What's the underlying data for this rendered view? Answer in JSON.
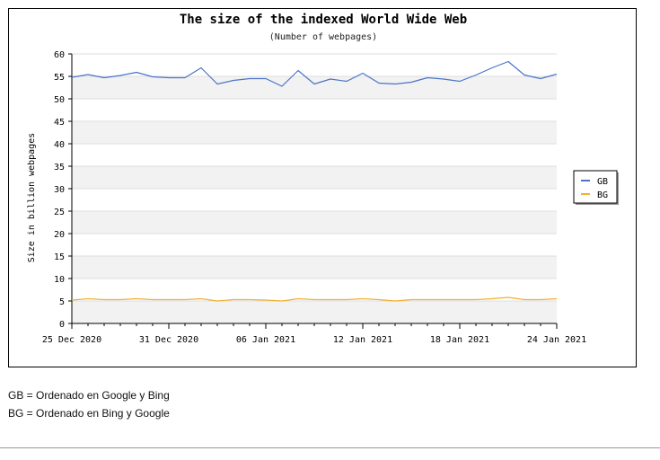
{
  "chart_data": {
    "type": "line",
    "title": "The size of the indexed World Wide Web",
    "subtitle": "(Number of webpages)",
    "xlabel": "",
    "ylabel": "Size in billion webpages",
    "ylim": [
      0,
      60
    ],
    "yticks": [
      0,
      5,
      10,
      15,
      20,
      25,
      30,
      35,
      40,
      45,
      50,
      55,
      60
    ],
    "xlim": [
      "2020-12-25",
      "2021-01-24"
    ],
    "xtick_labels": [
      "25 Dec 2020",
      "31 Dec 2020",
      "06 Jan 2021",
      "12 Jan 2021",
      "18 Jan 2021",
      "24 Jan 2021"
    ],
    "grid": "horizontal alternating bands",
    "legend_position": "right",
    "x": [
      "2020-12-25",
      "2020-12-26",
      "2020-12-27",
      "2020-12-28",
      "2020-12-29",
      "2020-12-30",
      "2020-12-31",
      "2021-01-01",
      "2021-01-02",
      "2021-01-03",
      "2021-01-04",
      "2021-01-05",
      "2021-01-06",
      "2021-01-07",
      "2021-01-08",
      "2021-01-09",
      "2021-01-10",
      "2021-01-11",
      "2021-01-12",
      "2021-01-13",
      "2021-01-14",
      "2021-01-15",
      "2021-01-16",
      "2021-01-17",
      "2021-01-18",
      "2021-01-19",
      "2021-01-20",
      "2021-01-21",
      "2021-01-22",
      "2021-01-23",
      "2021-01-24"
    ],
    "series": [
      {
        "name": "GB",
        "color": "#4a74c9",
        "values": [
          54.8,
          55.4,
          54.7,
          55.2,
          55.9,
          54.9,
          54.7,
          54.7,
          56.9,
          53.3,
          54.1,
          54.5,
          54.5,
          52.8,
          56.3,
          53.3,
          54.4,
          53.9,
          55.7,
          53.5,
          53.3,
          53.7,
          54.7,
          54.4,
          53.9,
          55.3,
          56.9,
          58.3,
          55.3,
          54.5,
          55.5
        ]
      },
      {
        "name": "BG",
        "color": "#f0b030",
        "values": [
          5.2,
          5.5,
          5.3,
          5.3,
          5.5,
          5.3,
          5.3,
          5.3,
          5.5,
          5.0,
          5.3,
          5.3,
          5.2,
          5.0,
          5.5,
          5.3,
          5.3,
          5.3,
          5.5,
          5.3,
          5.0,
          5.3,
          5.3,
          5.3,
          5.3,
          5.3,
          5.5,
          5.8,
          5.3,
          5.3,
          5.5
        ]
      }
    ]
  },
  "notes": {
    "gb": "GB = Ordenado en Google y Bing",
    "bg": "BG = Ordenado en Bing y Google"
  }
}
